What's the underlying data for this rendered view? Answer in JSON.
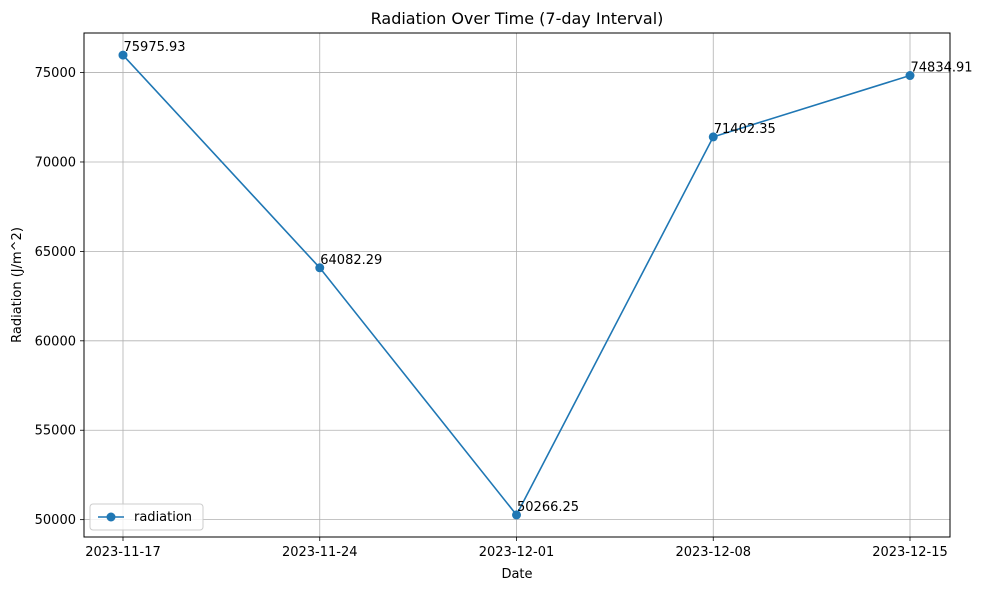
{
  "chart_data": {
    "type": "line",
    "title": "Radiation Over Time (7-day Interval)",
    "xlabel": "Date",
    "ylabel": "Radiation (J/m^2)",
    "x": [
      "2023-11-17",
      "2023-11-24",
      "2023-12-01",
      "2023-12-08",
      "2023-12-15"
    ],
    "series": [
      {
        "name": "radiation",
        "values": [
          75975.93,
          64082.29,
          50266.25,
          71402.35,
          74834.91
        ],
        "labels": [
          "75975.93",
          "64082.29",
          "50266.25",
          "71402.35",
          "74834.91"
        ],
        "color": "#1f77b4",
        "marker": "circle"
      }
    ],
    "xticks": [
      "2023-11-17",
      "2023-11-24",
      "2023-12-01",
      "2023-12-08",
      "2023-12-15"
    ],
    "yticks": [
      50000,
      55000,
      60000,
      65000,
      70000,
      75000
    ],
    "ytick_labels": [
      "50000",
      "55000",
      "60000",
      "65000",
      "70000",
      "75000"
    ],
    "ylim": [
      49030,
      77212
    ],
    "grid": true,
    "legend": {
      "position": "lower-left",
      "entries": [
        "radiation"
      ]
    }
  }
}
